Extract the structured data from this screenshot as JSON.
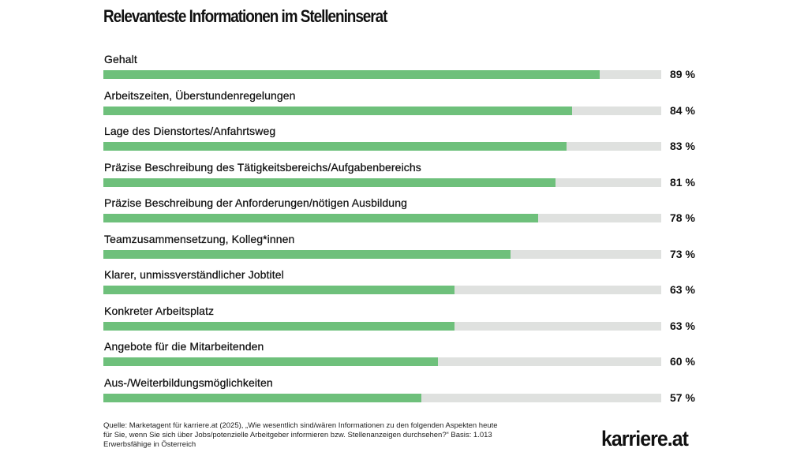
{
  "chart_data": {
    "type": "bar",
    "orientation": "horizontal",
    "title": "Relevanteste Informationen im Stelleninserat",
    "xlim": [
      0,
      100
    ],
    "unit": "%",
    "colors": {
      "bar": "#6ec07b",
      "track": "#dfe1df"
    },
    "categories": [
      "Gehalt",
      "Arbeitszeiten, Überstundenregelungen",
      "Lage des Dienstortes/Anfahrtsweg",
      "Präzise Beschreibung des Tätigkeitsbereichs/Aufgabenbereichs",
      "Präzise Beschreibung der Anforderungen/nötigen Ausbildung",
      "Teamzusammensetzung, Kolleg*innen",
      "Klarer, unmissverständlicher Jobtitel",
      "Konkreter Arbeitsplatz",
      "Angebote für die Mitarbeitenden",
      "Aus-/Weiterbildungsmöglichkeiten"
    ],
    "values": [
      89,
      84,
      83,
      81,
      78,
      73,
      63,
      63,
      60,
      57
    ],
    "value_labels": [
      "89 %",
      "84 %",
      "83 %",
      "81 %",
      "78 %",
      "73 %",
      "63 %",
      "63 %",
      "60 %",
      "57 %"
    ]
  },
  "footnote": "Quelle: Marketagent für karriere.at (2025), „Wie wesentlich sind/wären Informationen zu den folgenden Aspekten heute für Sie, wenn Sie sich über Jobs/potenzielle Arbeitgeber informieren bzw. Stellenanzeigen durchsehen?“ Basis: 1.013 Erwerbsfähige in Österreich",
  "logo": "karriere.at"
}
